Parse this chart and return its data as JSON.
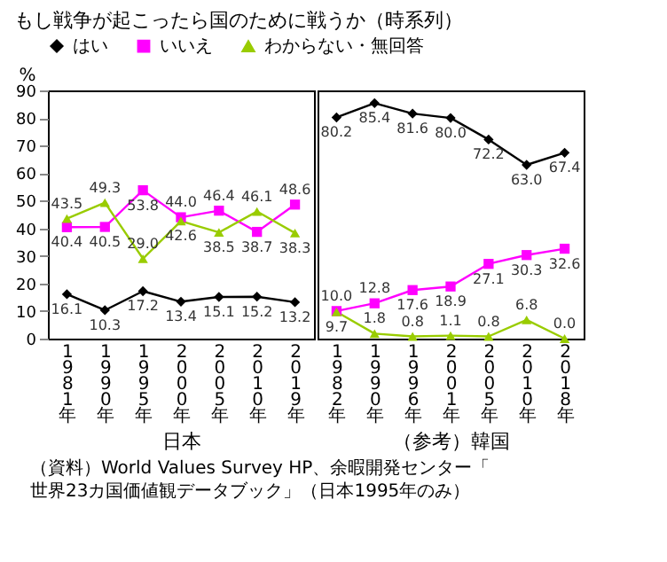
{
  "chart_data": [
    {
      "type": "line",
      "title": "もし戦争が起こったら国のために戦うか（時系列）",
      "ylabel": "%",
      "xlabel": "日本",
      "categories": [
        "1981年",
        "1990年",
        "1995年",
        "2000年",
        "2005年",
        "2010年",
        "2019年"
      ],
      "ylim": [
        0,
        90
      ],
      "yticks": [
        0,
        10,
        20,
        30,
        40,
        50,
        60,
        70,
        80,
        90
      ],
      "grid": false,
      "legend": "top",
      "line_style": "solid",
      "series": [
        {
          "name": "はい",
          "color": "#000000",
          "marker": "diamond",
          "values": [
            16.1,
            10.3,
            17.2,
            13.4,
            15.1,
            15.2,
            13.2
          ],
          "value_labels": [
            "16.1",
            "10.3",
            "17.2",
            "13.4",
            "15.1",
            "15.2",
            "13.2"
          ]
        },
        {
          "name": "いいえ",
          "color": "#ff00ff",
          "marker": "square",
          "values": [
            40.4,
            40.5,
            53.8,
            44.0,
            46.4,
            38.7,
            48.6
          ],
          "value_labels": [
            "40.4",
            "40.5",
            "53.8",
            "44.0",
            "46.4",
            "38.7",
            "48.6"
          ]
        },
        {
          "name": "わからない・無回答",
          "color": "#99cc00",
          "marker": "triangle",
          "values": [
            43.5,
            49.3,
            29.0,
            42.6,
            38.5,
            46.1,
            38.3
          ],
          "value_labels": [
            "43.5",
            "49.3",
            "29.0",
            "42.6",
            "38.5",
            "46.1",
            "38.3"
          ]
        }
      ]
    },
    {
      "type": "line",
      "xlabel": "（参考）韓国",
      "categories": [
        "1982年",
        "1990年",
        "1996年",
        "2001年",
        "2005年",
        "2010年",
        "2018年"
      ],
      "ylim": [
        0,
        90
      ],
      "grid": false,
      "tick_labels": "x",
      "line_style": "solid",
      "annotations": [
        "（資料）World Values Survey HP、余暇開発センター「世界23カ国価値観データブック」（日本1995年のみ）"
      ],
      "series": [
        {
          "name": "はい",
          "color": "#000000",
          "marker": "diamond",
          "values": [
            80.2,
            85.4,
            81.6,
            80.0,
            72.2,
            63.0,
            67.4
          ],
          "value_labels": [
            "80.2",
            "85.4",
            "81.6",
            "80.0",
            "72.2",
            "63.0",
            "67.4"
          ]
        },
        {
          "name": "いいえ",
          "color": "#ff00ff",
          "marker": "square",
          "values": [
            10.0,
            12.8,
            17.6,
            18.9,
            27.1,
            30.3,
            32.6
          ],
          "value_labels": [
            "10.0",
            "12.8",
            "17.6",
            "18.9",
            "27.1",
            "30.3",
            "32.6"
          ]
        },
        {
          "name": "わからない・無回答",
          "color": "#99cc00",
          "marker": "triangle",
          "values": [
            9.7,
            1.8,
            0.8,
            1.1,
            0.8,
            6.8,
            0.0
          ],
          "value_labels": [
            "9.7",
            "1.8",
            "0.8",
            "1.1",
            "0.8",
            "6.8",
            "0.0"
          ]
        }
      ]
    }
  ]
}
